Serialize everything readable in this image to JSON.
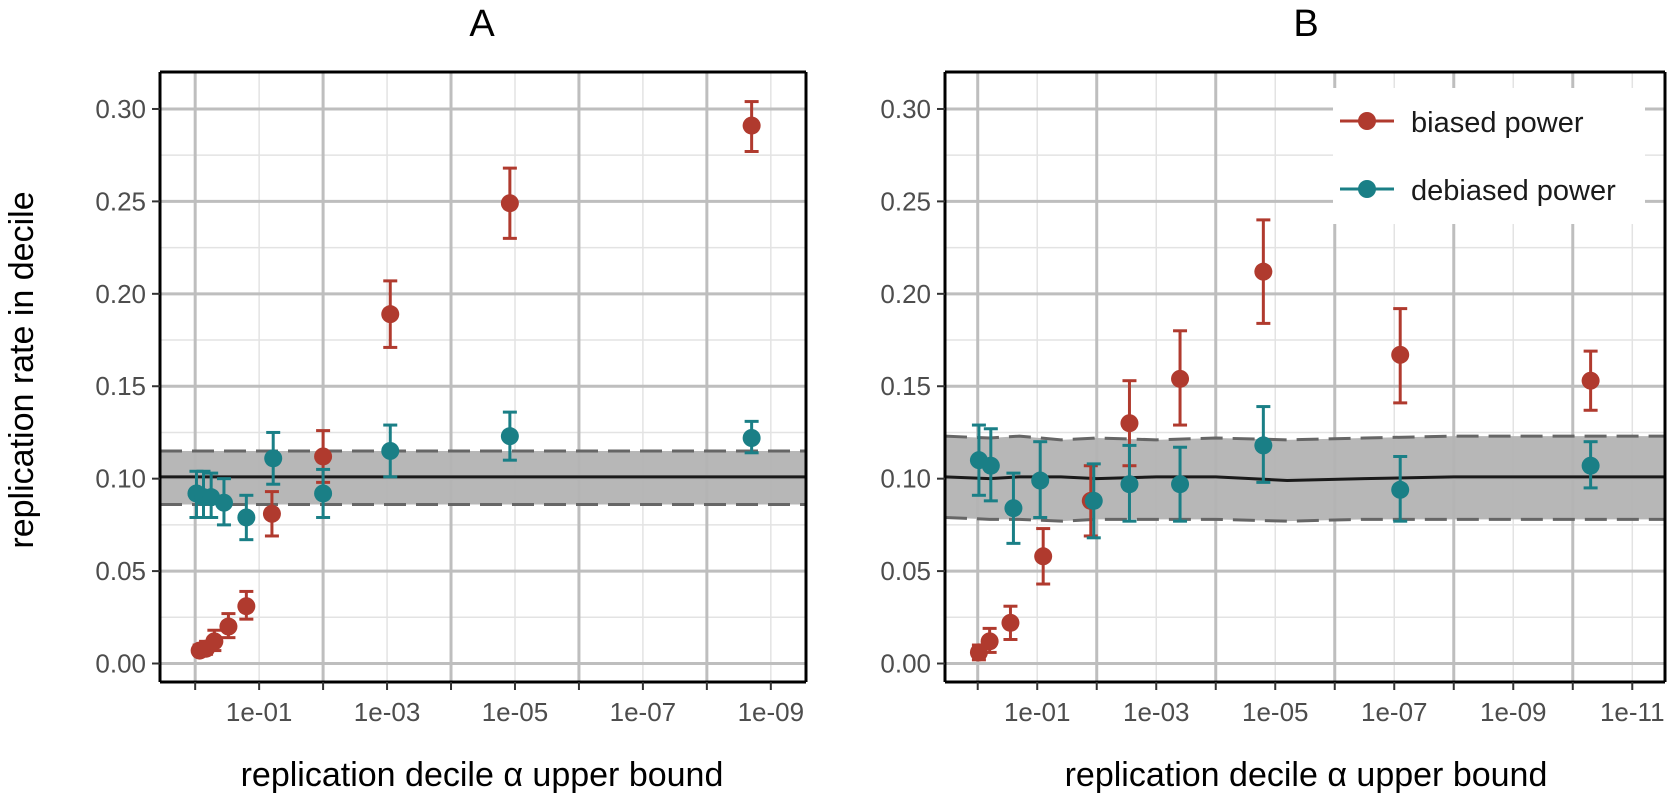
{
  "colors": {
    "biased": "#B03A2E",
    "debiased": "#1A7F86",
    "band": "#B3B3B3",
    "null_line": "#1A1A1A",
    "dashed": "#666666",
    "grid_major": "#BEBEBE",
    "grid_minor": "#E3E3E3",
    "tick_text": "#4D4D4D"
  },
  "ylabel": "replication rate in decile",
  "legend": {
    "biased": "biased power",
    "debiased": "debiased power"
  },
  "chart_data": [
    {
      "type": "scatter",
      "title": "A",
      "xlabel": "replication decile α upper bound",
      "x_scale": "log10 alpha, reversed (values decrease left to right)",
      "x_ticks": [
        "1e-01",
        "1e-03",
        "1e-05",
        "1e-07",
        "1e-09"
      ],
      "xlim_exponent": [
        0.55,
        -9.55
      ],
      "ylim": [
        -0.01,
        0.32
      ],
      "y_ticks": [
        "0.00",
        "0.05",
        "0.10",
        "0.15",
        "0.20",
        "0.25",
        "0.30"
      ],
      "grid": true,
      "legend": "none",
      "null_band": {
        "x_exponent": [
          0.55,
          -9.55
        ],
        "mean": [
          0.101,
          0.101
        ],
        "lower": [
          0.086,
          0.086
        ],
        "upper": [
          0.115,
          0.115
        ]
      },
      "series": [
        {
          "name": "biased power",
          "color_key": "biased",
          "points": [
            {
              "x_exponent": -0.07,
              "y": 0.007,
              "lo": 0.005,
              "hi": 0.01
            },
            {
              "x_exponent": -0.17,
              "y": 0.008,
              "lo": 0.005,
              "hi": 0.012
            },
            {
              "x_exponent": -0.3,
              "y": 0.012,
              "lo": 0.007,
              "hi": 0.018
            },
            {
              "x_exponent": -0.52,
              "y": 0.02,
              "lo": 0.014,
              "hi": 0.027
            },
            {
              "x_exponent": -0.8,
              "y": 0.031,
              "lo": 0.024,
              "hi": 0.039
            },
            {
              "x_exponent": -1.2,
              "y": 0.081,
              "lo": 0.069,
              "hi": 0.093
            },
            {
              "x_exponent": -2.0,
              "y": 0.112,
              "lo": 0.098,
              "hi": 0.126
            },
            {
              "x_exponent": -3.05,
              "y": 0.189,
              "lo": 0.171,
              "hi": 0.207
            },
            {
              "x_exponent": -4.92,
              "y": 0.249,
              "lo": 0.23,
              "hi": 0.268
            },
            {
              "x_exponent": -8.7,
              "y": 0.291,
              "lo": 0.277,
              "hi": 0.304
            }
          ]
        },
        {
          "name": "debiased power",
          "color_key": "debiased",
          "points": [
            {
              "x_exponent": -0.02,
              "y": 0.092,
              "lo": 0.079,
              "hi": 0.104
            },
            {
              "x_exponent": -0.13,
              "y": 0.09,
              "lo": 0.079,
              "hi": 0.104
            },
            {
              "x_exponent": -0.25,
              "y": 0.09,
              "lo": 0.079,
              "hi": 0.103
            },
            {
              "x_exponent": -0.45,
              "y": 0.087,
              "lo": 0.075,
              "hi": 0.1
            },
            {
              "x_exponent": -0.8,
              "y": 0.079,
              "lo": 0.067,
              "hi": 0.091
            },
            {
              "x_exponent": -1.22,
              "y": 0.111,
              "lo": 0.097,
              "hi": 0.125
            },
            {
              "x_exponent": -2.0,
              "y": 0.092,
              "lo": 0.079,
              "hi": 0.105
            },
            {
              "x_exponent": -3.05,
              "y": 0.115,
              "lo": 0.101,
              "hi": 0.129
            },
            {
              "x_exponent": -4.92,
              "y": 0.123,
              "lo": 0.11,
              "hi": 0.136
            },
            {
              "x_exponent": -8.7,
              "y": 0.122,
              "lo": 0.114,
              "hi": 0.131
            }
          ]
        }
      ]
    },
    {
      "type": "scatter",
      "title": "B",
      "xlabel": "replication decile α upper bound",
      "x_scale": "log10 alpha, reversed (values decrease left to right)",
      "x_ticks": [
        "1e-01",
        "1e-03",
        "1e-05",
        "1e-07",
        "1e-09",
        "1e-11"
      ],
      "xlim_exponent": [
        0.55,
        -11.55
      ],
      "ylim": [
        -0.01,
        0.32
      ],
      "y_ticks": [
        "0.00",
        "0.05",
        "0.10",
        "0.15",
        "0.20",
        "0.25",
        "0.30"
      ],
      "grid": true,
      "legend": "top-right",
      "null_band": {
        "x_exponent": [
          0.55,
          -0.2,
          -0.7,
          -1.4,
          -2.0,
          -3.0,
          -4.0,
          -5.2,
          -6.5,
          -8.0,
          -10.0,
          -11.55
        ],
        "mean": [
          0.101,
          0.1,
          0.101,
          0.101,
          0.1,
          0.101,
          0.101,
          0.099,
          0.1,
          0.101,
          0.101,
          0.101
        ],
        "lower": [
          0.079,
          0.078,
          0.078,
          0.077,
          0.078,
          0.078,
          0.078,
          0.077,
          0.078,
          0.078,
          0.078,
          0.078
        ],
        "upper": [
          0.123,
          0.122,
          0.123,
          0.121,
          0.122,
          0.121,
          0.122,
          0.121,
          0.122,
          0.123,
          0.123,
          0.123
        ]
      },
      "series": [
        {
          "name": "biased power",
          "color_key": "biased",
          "points": [
            {
              "x_exponent": -0.02,
              "y": 0.006,
              "lo": 0.002,
              "hi": 0.01
            },
            {
              "x_exponent": -0.2,
              "y": 0.012,
              "lo": 0.006,
              "hi": 0.019
            },
            {
              "x_exponent": -0.55,
              "y": 0.022,
              "lo": 0.013,
              "hi": 0.031
            },
            {
              "x_exponent": -1.1,
              "y": 0.058,
              "lo": 0.043,
              "hi": 0.073
            },
            {
              "x_exponent": -1.9,
              "y": 0.088,
              "lo": 0.069,
              "hi": 0.107
            },
            {
              "x_exponent": -2.55,
              "y": 0.13,
              "lo": 0.107,
              "hi": 0.153
            },
            {
              "x_exponent": -3.4,
              "y": 0.154,
              "lo": 0.129,
              "hi": 0.18
            },
            {
              "x_exponent": -4.8,
              "y": 0.212,
              "lo": 0.184,
              "hi": 0.24
            },
            {
              "x_exponent": -7.1,
              "y": 0.167,
              "lo": 0.141,
              "hi": 0.192
            },
            {
              "x_exponent": -10.3,
              "y": 0.153,
              "lo": 0.137,
              "hi": 0.169
            }
          ]
        },
        {
          "name": "debiased power",
          "color_key": "debiased",
          "points": [
            {
              "x_exponent": -0.02,
              "y": 0.11,
              "lo": 0.091,
              "hi": 0.129
            },
            {
              "x_exponent": -0.22,
              "y": 0.107,
              "lo": 0.088,
              "hi": 0.127
            },
            {
              "x_exponent": -0.6,
              "y": 0.084,
              "lo": 0.065,
              "hi": 0.103
            },
            {
              "x_exponent": -1.05,
              "y": 0.099,
              "lo": 0.079,
              "hi": 0.12
            },
            {
              "x_exponent": -1.95,
              "y": 0.088,
              "lo": 0.068,
              "hi": 0.108
            },
            {
              "x_exponent": -2.55,
              "y": 0.097,
              "lo": 0.077,
              "hi": 0.118
            },
            {
              "x_exponent": -3.4,
              "y": 0.097,
              "lo": 0.077,
              "hi": 0.117
            },
            {
              "x_exponent": -4.8,
              "y": 0.118,
              "lo": 0.098,
              "hi": 0.139
            },
            {
              "x_exponent": -7.1,
              "y": 0.094,
              "lo": 0.077,
              "hi": 0.112
            },
            {
              "x_exponent": -10.3,
              "y": 0.107,
              "lo": 0.095,
              "hi": 0.12
            }
          ]
        }
      ]
    }
  ]
}
